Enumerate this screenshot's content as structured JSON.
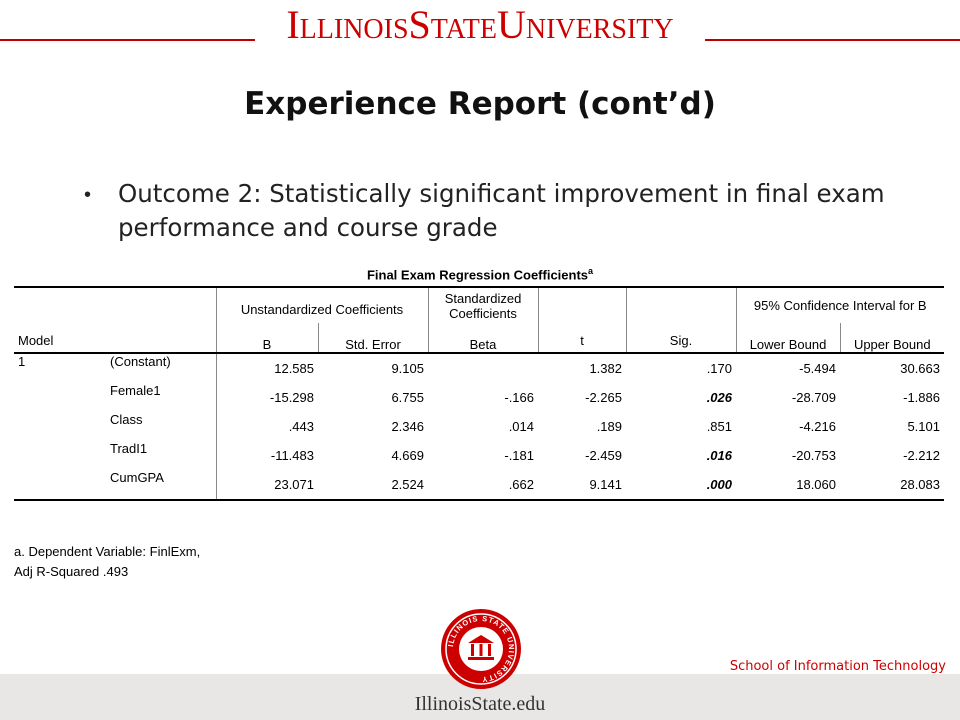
{
  "banner": {
    "wordmark": "IllinoisStateUniversity"
  },
  "slide": {
    "title": "Experience Report (cont’d)",
    "bullet": "Outcome 2: Statistically significant improvement in final exam performance and course grade"
  },
  "table": {
    "title": "Final Exam Regression Coefficients",
    "title_sup": "a",
    "header1": {
      "model": "Model",
      "unstd": "Unstandardized Coefficients",
      "std": "Standardized Coefficients",
      "ci": "95% Confidence Interval for B"
    },
    "header2": [
      "B",
      "Std. Error",
      "Beta",
      "t",
      "Sig.",
      "Lower Bound",
      "Upper Bound"
    ],
    "model_num": "1",
    "rows": [
      {
        "name": "(Constant)",
        "b": "12.585",
        "se": "9.105",
        "beta": "",
        "t": "1.382",
        "sig": ".170",
        "lb": "-5.494",
        "ub": "30.663"
      },
      {
        "name": "Female1",
        "b": "-15.298",
        "se": "6.755",
        "beta": "-.166",
        "t": "-2.265",
        "sig": ".026",
        "lb": "-28.709",
        "ub": "-1.886"
      },
      {
        "name": "Class",
        "b": ".443",
        "se": "2.346",
        "beta": ".014",
        "t": ".189",
        "sig": ".851",
        "lb": "-4.216",
        "ub": "5.101"
      },
      {
        "name": "TradI1",
        "b": "-11.483",
        "se": "4.669",
        "beta": "-.181",
        "t": "-2.459",
        "sig": ".016",
        "lb": "-20.753",
        "ub": "-2.212"
      },
      {
        "name": "CumGPA",
        "b": "23.071",
        "se": "2.524",
        "beta": ".662",
        "t": "9.141",
        "sig": ".000",
        "lb": "18.060",
        "ub": "28.083"
      }
    ],
    "footnote1": "a. Dependent Variable: FinlExm,",
    "footnote2": "Adj R-Squared .493"
  },
  "footer": {
    "school": "School of Information Technology",
    "site": "IllinoisState.edu",
    "seal_text": "ILLINOIS STATE UNIVERSITY"
  },
  "colors": {
    "brand_red": "#cc0000",
    "footer_bg": "#e8e7e5"
  }
}
